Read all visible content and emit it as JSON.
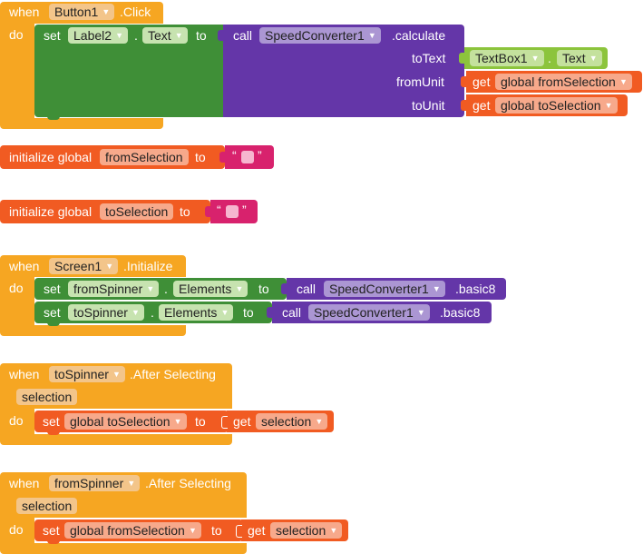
{
  "colors": {
    "event": "#f6a622",
    "setter": "#3f8f37",
    "procedure": "#6436a8",
    "variable": "#f15b22",
    "component": "#8cc43c",
    "text": "#d8226d"
  },
  "b1": {
    "when": "when",
    "component": "Button1",
    "event": ".Click",
    "do": "do",
    "set": "set",
    "target": "Label2",
    "dot": ".",
    "prop": "Text",
    "to": "to",
    "call": "call",
    "proc_comp": "SpeedConverter1",
    "proc": ".calculate",
    "arg1": "toText",
    "arg2": "fromUnit",
    "arg3": "toUnit",
    "tb_comp": "TextBox1",
    "tb_dot": ".",
    "tb_prop": "Text",
    "get": "get",
    "from_var": "global fromSelection",
    "to_var": "global toSelection"
  },
  "g1": {
    "init": "initialize global",
    "name": "fromSelection",
    "to": "to",
    "q1": "“",
    "q2": "”"
  },
  "g2": {
    "init": "initialize global",
    "name": "toSelection",
    "to": "to",
    "q1": "“",
    "q2": "”"
  },
  "b2": {
    "when": "when",
    "component": "Screen1",
    "event": ".Initialize",
    "do": "do",
    "set": "set",
    "s1_comp": "fromSpinner",
    "dot": ".",
    "prop": "Elements",
    "to": "to",
    "call": "call",
    "proc_comp": "SpeedConverter1",
    "proc": ".basic8",
    "s2_comp": "toSpinner"
  },
  "b3": {
    "when": "when",
    "component": "toSpinner",
    "event": ".After Selecting",
    "param": "selection",
    "do": "do",
    "set": "set",
    "var": "global toSelection",
    "to": "to",
    "get": "get",
    "val": "selection"
  },
  "b4": {
    "when": "when",
    "component": "fromSpinner",
    "event": ".After Selecting",
    "param": "selection",
    "do": "do",
    "set": "set",
    "var": "global fromSelection",
    "to": "to",
    "get": "get",
    "val": "selection"
  }
}
